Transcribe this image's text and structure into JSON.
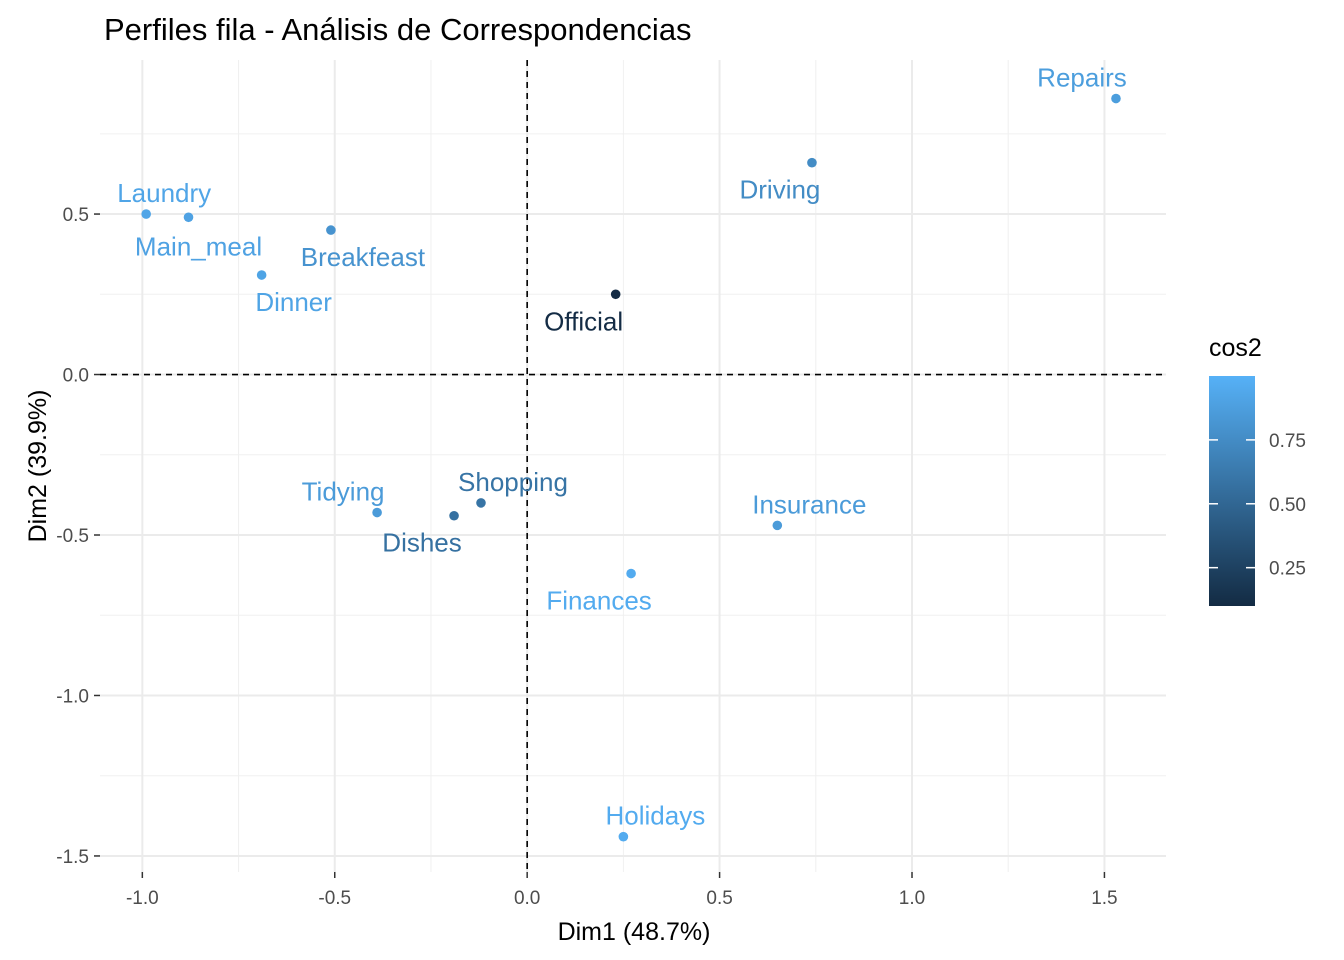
{
  "chart_data": {
    "type": "scatter",
    "title": "Perfiles fila - Análisis de Correspondencias",
    "xlabel": "Dim1 (48.7%)",
    "ylabel": "Dim2 (39.9%)",
    "xlim": [
      -1.11,
      1.66
    ],
    "ylim": [
      -1.55,
      0.98
    ],
    "x_ticks": [
      -1.0,
      -0.5,
      0.0,
      0.5,
      1.0,
      1.5
    ],
    "x_tick_labels": [
      "-1.0",
      "-0.5",
      "0.0",
      "0.5",
      "1.0",
      "1.5"
    ],
    "y_ticks": [
      -1.5,
      -1.0,
      -0.5,
      0.0,
      0.5
    ],
    "y_tick_labels": [
      "-1.5",
      "-1.0",
      "-0.5",
      "0.0",
      "0.5"
    ],
    "grid": true,
    "reference_lines": {
      "x": 0,
      "y": 0,
      "style": "dashed"
    },
    "points": [
      {
        "label": "Laundry",
        "x": -0.99,
        "y": 0.5,
        "cos2": 0.92,
        "label_pos": "above"
      },
      {
        "label": "Main_meal",
        "x": -0.88,
        "y": 0.49,
        "cos2": 0.9,
        "label_pos": "below"
      },
      {
        "label": "Dinner",
        "x": -0.69,
        "y": 0.31,
        "cos2": 0.91,
        "label_pos": "below-right"
      },
      {
        "label": "Breakfeast",
        "x": -0.51,
        "y": 0.45,
        "cos2": 0.8,
        "label_pos": "below-right"
      },
      {
        "label": "Tidying",
        "x": -0.39,
        "y": -0.43,
        "cos2": 0.85,
        "label_pos": "above-left"
      },
      {
        "label": "Dishes",
        "x": -0.19,
        "y": -0.44,
        "cos2": 0.57,
        "label_pos": "below-left"
      },
      {
        "label": "Shopping",
        "x": -0.12,
        "y": -0.4,
        "cos2": 0.59,
        "label_pos": "above-right"
      },
      {
        "label": "Official",
        "x": 0.23,
        "y": 0.25,
        "cos2": 0.11,
        "label_pos": "below-left"
      },
      {
        "label": "Driving",
        "x": 0.74,
        "y": 0.66,
        "cos2": 0.75,
        "label_pos": "below-left"
      },
      {
        "label": "Finances",
        "x": 0.27,
        "y": -0.62,
        "cos2": 0.96,
        "label_pos": "below-left"
      },
      {
        "label": "Insurance",
        "x": 0.65,
        "y": -0.47,
        "cos2": 0.85,
        "label_pos": "above-right"
      },
      {
        "label": "Repairs",
        "x": 1.53,
        "y": 0.86,
        "cos2": 0.87,
        "label_pos": "above-left"
      },
      {
        "label": "Holidays",
        "x": 0.25,
        "y": -1.44,
        "cos2": 0.96,
        "label_pos": "above-right"
      }
    ],
    "color_scale": {
      "name": "cos2",
      "low": "#132B43",
      "high": "#56B1F7",
      "range": [
        0.1,
        1.0
      ],
      "ticks": [
        0.25,
        0.5,
        0.75
      ],
      "tick_labels": [
        "0.25",
        "0.50",
        "0.75"
      ]
    },
    "legend": {
      "position": "right",
      "title": "cos2"
    }
  }
}
